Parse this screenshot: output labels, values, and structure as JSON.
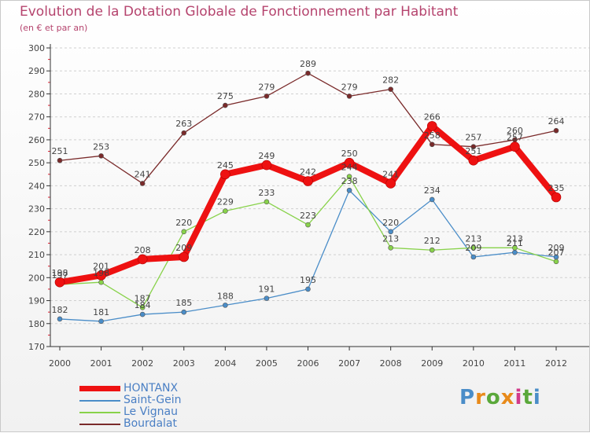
{
  "title": "Evolution de la Dotation Globale de Fonctionnement par Habitant",
  "subtitle": "(en € et par an)",
  "logo_text": "Proxiti",
  "chart_data": {
    "type": "line",
    "categories": [
      "2000",
      "2001",
      "2002",
      "2003",
      "2004",
      "2005",
      "2006",
      "2007",
      "2008",
      "2009",
      "2010",
      "2011",
      "2012"
    ],
    "ylim": [
      170,
      300
    ],
    "yticks": [
      170,
      180,
      190,
      200,
      210,
      220,
      230,
      240,
      250,
      260,
      270,
      280,
      290,
      300
    ],
    "grid": "horizontal dashed",
    "legend_position": "bottom-left",
    "series": [
      {
        "name": "HONTANX",
        "color": "#ee1111",
        "values": [
          198,
          201,
          208,
          209,
          245,
          249,
          242,
          250,
          241,
          266,
          251,
          257,
          235
        ]
      },
      {
        "name": "Saint-Gein",
        "color": "#4a8dc8",
        "values": [
          182,
          181,
          184,
          185,
          188,
          191,
          195,
          238,
          220,
          234,
          209,
          211,
          209
        ]
      },
      {
        "name": "Le Vignau",
        "color": "#88d24a",
        "values": [
          197,
          198,
          187,
          220,
          229,
          233,
          223,
          244,
          213,
          212,
          213,
          213,
          207
        ]
      },
      {
        "name": "Bourdalat",
        "color": "#7a2a2a",
        "values": [
          251,
          253,
          241,
          263,
          275,
          279,
          289,
          279,
          282,
          258,
          257,
          260,
          264
        ]
      }
    ]
  }
}
